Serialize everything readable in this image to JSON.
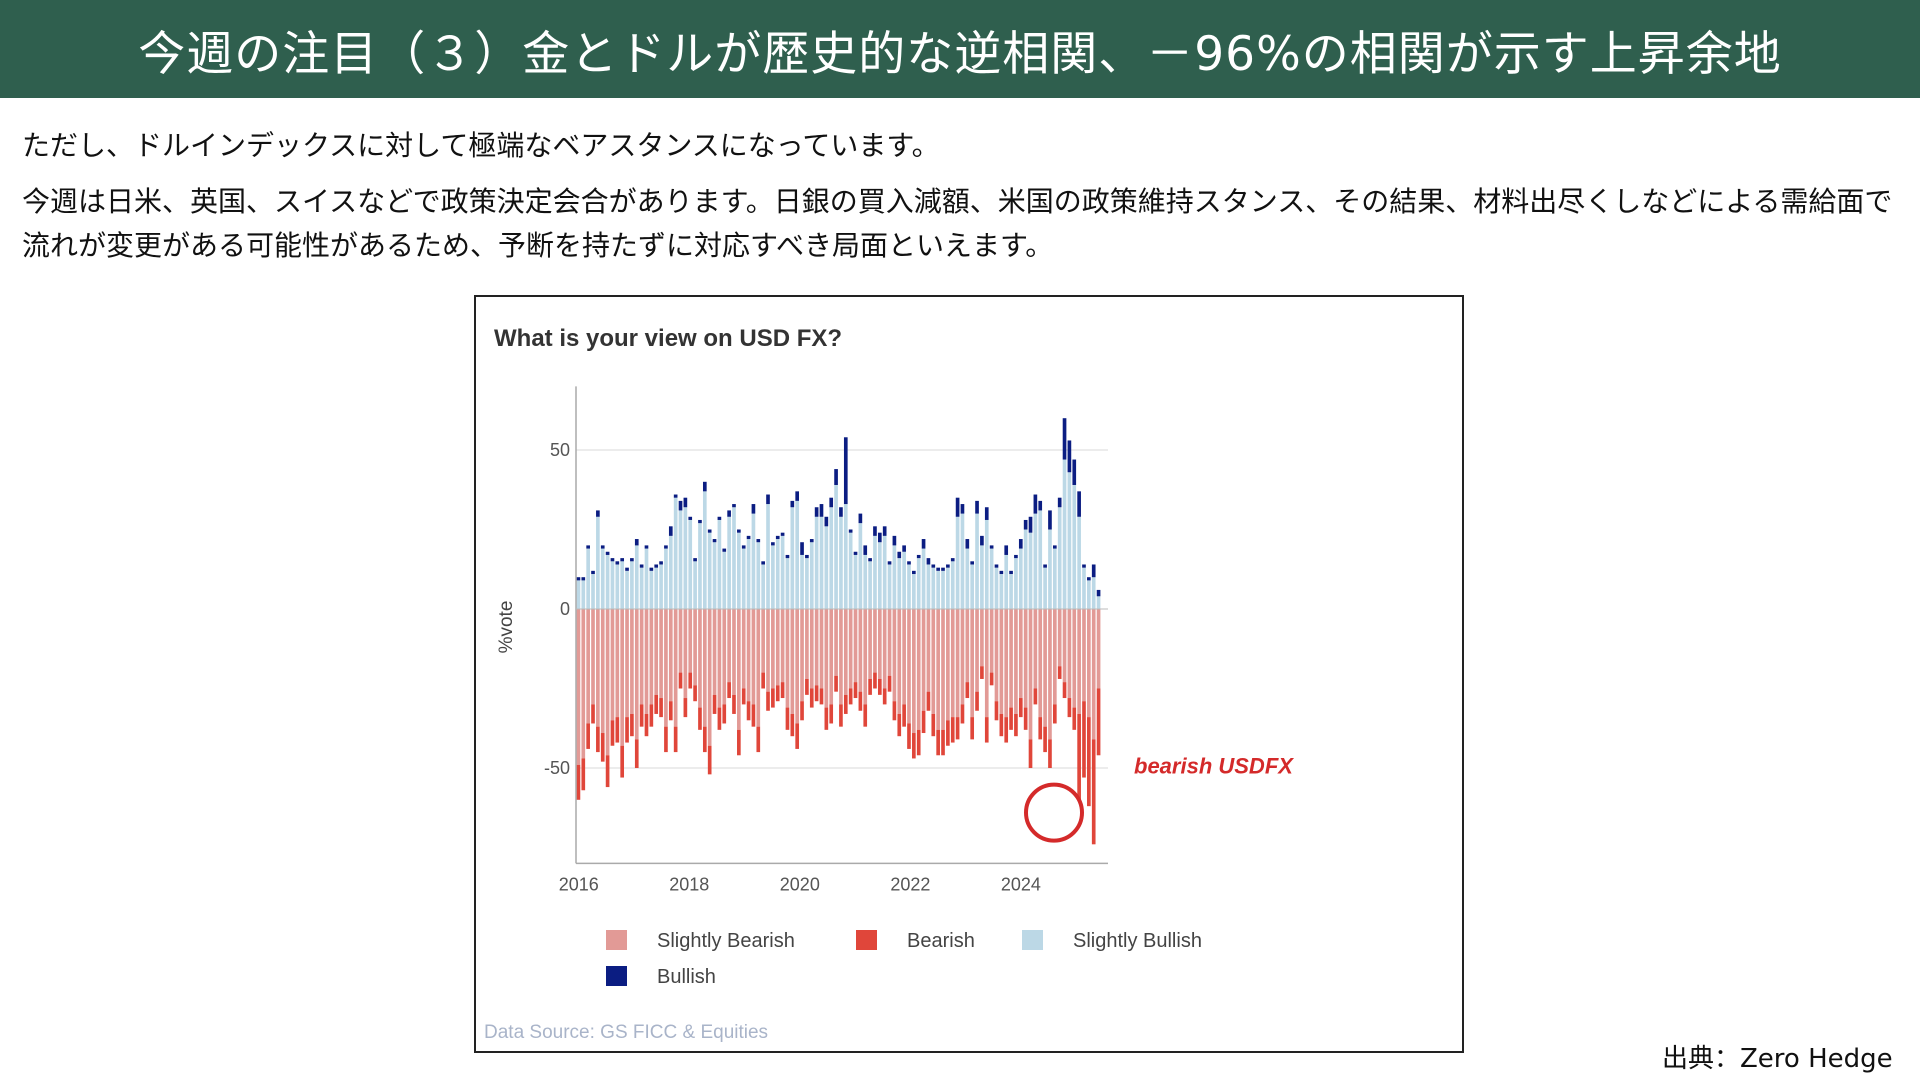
{
  "slide": {
    "title": "今週の注目（３）金とドルが歴史的な逆相関、－96%の相関が示す上昇余地",
    "paragraph_1": "ただし、ドルインデックスに対して極端なベアスタンスになっています。",
    "paragraph_2": "今週は日米、英国、スイスなどで政策決定会合があります。日銀の買入減額、米国の政策維持スタンス、その結果、材料出尽くしなどによる需給面で流れが変更がある可能性があるため、予断を持たずに対応すべき局面といえます。",
    "credit": "出典：Zero Hedge"
  },
  "colors": {
    "title_bg": "#2f5f4e",
    "slightly_bearish": "#e29a96",
    "bearish": "#e0463a",
    "slightly_bullish": "#bcd8e6",
    "bullish": "#0b1d82",
    "annotation": "#d42a2a"
  },
  "chart_data": {
    "type": "bar",
    "title": "What is your view on USD FX?",
    "ylabel": "%vote",
    "xlabel": "",
    "ylim": [
      -80,
      70
    ],
    "yticks": [
      50,
      0,
      -50
    ],
    "ytick_labels": [
      "50",
      "0",
      "-50"
    ],
    "xlim": [
      2015.95,
      2025.5
    ],
    "xticks": [
      2016,
      2018,
      2020,
      2022,
      2024
    ],
    "xtick_labels": [
      "2016",
      "2018",
      "2020",
      "2022",
      "2024"
    ],
    "grid": "horizontal",
    "stacked": true,
    "source": "Data Source: GS FICC & Equities",
    "annotation": {
      "text": "bearish USDFX",
      "x": 2025.4,
      "y": -70
    },
    "legend": [
      {
        "key": "slightly_bearish",
        "label": "Slightly Bearish"
      },
      {
        "key": "bearish",
        "label": "Bearish"
      },
      {
        "key": "slightly_bullish",
        "label": "Slightly Bullish"
      },
      {
        "key": "bullish",
        "label": "Bullish"
      }
    ],
    "series": {
      "bullish_total": [
        10,
        10,
        20,
        12,
        31,
        20,
        18,
        16,
        15,
        16,
        13,
        16,
        22,
        14,
        20,
        13,
        14,
        15,
        20,
        26,
        36,
        34,
        35,
        29,
        16,
        28,
        40,
        25,
        22,
        29,
        19,
        31,
        33,
        25,
        20,
        23,
        33,
        22,
        15,
        36,
        21,
        23,
        24,
        17,
        34,
        37,
        21,
        17,
        22,
        32,
        33,
        29,
        35,
        44,
        32,
        54,
        25,
        18,
        30,
        20,
        16,
        26,
        24,
        26,
        15,
        23,
        18,
        20,
        15,
        12,
        17,
        22,
        16,
        14,
        13,
        13,
        14,
        16,
        35,
        33,
        22,
        15,
        34,
        23,
        32,
        20,
        14,
        12,
        20,
        12,
        17,
        22,
        28,
        29,
        36,
        34,
        14,
        31,
        20,
        35,
        60,
        53,
        47,
        37,
        14,
        10,
        14,
        6
      ],
      "bullish_len": [
        1,
        1,
        1,
        1,
        2,
        1,
        1,
        1,
        1,
        1,
        1,
        1,
        2,
        1,
        1,
        1,
        1,
        1,
        1,
        3,
        1,
        3,
        3,
        1,
        1,
        1,
        3,
        1,
        1,
        1,
        1,
        2,
        1,
        1,
        1,
        1,
        3,
        1,
        1,
        3,
        1,
        1,
        1,
        1,
        2,
        3,
        4,
        1,
        1,
        3,
        4,
        3,
        3,
        5,
        3,
        21,
        1,
        1,
        3,
        3,
        1,
        3,
        3,
        3,
        1,
        3,
        2,
        2,
        1,
        1,
        1,
        3,
        2,
        1,
        1,
        1,
        1,
        1,
        6,
        3,
        3,
        1,
        4,
        3,
        4,
        1,
        1,
        1,
        3,
        1,
        1,
        3,
        3,
        5,
        6,
        3,
        1,
        6,
        1,
        3,
        13,
        10,
        8,
        8,
        1,
        1,
        4,
        2
      ],
      "bearish_total": [
        -60,
        -57,
        -44,
        -36,
        -45,
        -48,
        -56,
        -43,
        -42,
        -53,
        -42,
        -40,
        -50,
        -37,
        -40,
        -37,
        -33,
        -34,
        -45,
        -35,
        -45,
        -25,
        -34,
        -25,
        -29,
        -38,
        -45,
        -52,
        -33,
        -38,
        -36,
        -28,
        -33,
        -46,
        -30,
        -35,
        -37,
        -45,
        -25,
        -32,
        -31,
        -29,
        -28,
        -38,
        -40,
        -44,
        -35,
        -27,
        -31,
        -29,
        -30,
        -38,
        -36,
        -26,
        -37,
        -33,
        -30,
        -28,
        -32,
        -37,
        -27,
        -25,
        -27,
        -30,
        -26,
        -35,
        -40,
        -37,
        -44,
        -47,
        -46,
        -39,
        -32,
        -40,
        -46,
        -46,
        -43,
        -42,
        -41,
        -36,
        -28,
        -41,
        -32,
        -22,
        -42,
        -24,
        -35,
        -40,
        -42,
        -38,
        -40,
        -34,
        -38,
        -50,
        -30,
        -41,
        -45,
        -50,
        -36,
        -22,
        -28,
        -34,
        -38,
        -60,
        -53,
        -62,
        -74,
        -46
      ]
    }
  }
}
